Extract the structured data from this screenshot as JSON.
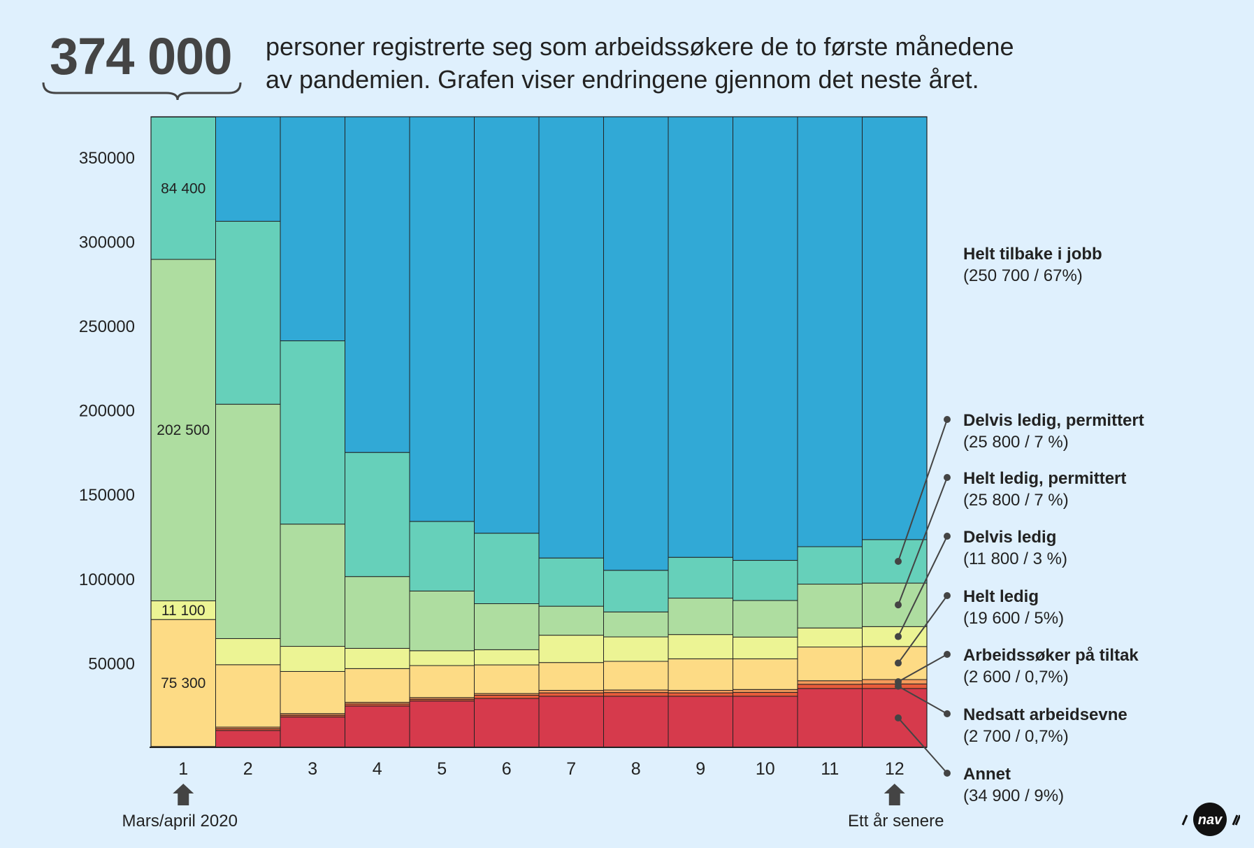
{
  "header": {
    "total": "374 000",
    "text_line1": "personer registrerte seg som arbeidssøkere de to første månedene",
    "text_line2": "av pandemien. Grafen viser endringene gjennom det neste året."
  },
  "chart_data": {
    "type": "bar",
    "stacked": true,
    "categories": [
      "1",
      "2",
      "3",
      "4",
      "5",
      "6",
      "7",
      "8",
      "9",
      "10",
      "11",
      "12"
    ],
    "y_ticks": [
      50000,
      100000,
      150000,
      200000,
      250000,
      300000,
      350000
    ],
    "ylim": [
      0,
      374000
    ],
    "series": [
      {
        "name": "Annet",
        "color": "#d63a4c",
        "values": [
          0,
          10000,
          18000,
          24500,
          27500,
          29000,
          30300,
          30300,
          30300,
          30300,
          34900,
          34900
        ]
      },
      {
        "name": "Nedsatt arbeidsevne",
        "color": "#e85b3a",
        "values": [
          0,
          1000,
          1000,
          1200,
          1000,
          1900,
          2000,
          2200,
          2000,
          2300,
          2500,
          2700
        ]
      },
      {
        "name": "Arbeidssøker på tiltak",
        "color": "#f59a5a",
        "values": [
          500,
          1000,
          1000,
          1000,
          1000,
          1000,
          1500,
          1500,
          1500,
          1700,
          2100,
          2600
        ]
      },
      {
        "name": "Helt ledig",
        "color": "#fddb85",
        "values": [
          75300,
          37000,
          25000,
          20000,
          19000,
          17000,
          16500,
          17000,
          18700,
          18200,
          20000,
          19600
        ]
      },
      {
        "name": "Delvis ledig",
        "color": "#ecf494",
        "values": [
          11100,
          15500,
          14900,
          12000,
          8800,
          9000,
          16200,
          14500,
          14400,
          12900,
          11300,
          11800
        ]
      },
      {
        "name": "Helt ledig, permittert",
        "color": "#aedda0",
        "values": [
          202500,
          139000,
          72500,
          42600,
          35400,
          27300,
          17200,
          14800,
          21600,
          21700,
          26000,
          25800
        ]
      },
      {
        "name": "Delvis ledig, permittert",
        "color": "#66d0ba",
        "values": [
          84400,
          108500,
          108700,
          73600,
          41300,
          41800,
          28600,
          24700,
          24200,
          23800,
          22200,
          25800
        ]
      },
      {
        "name": "Helt tilbake i jobb",
        "color": "#31a9d6",
        "values": [
          200,
          62000,
          132900,
          199100,
          240000,
          247000,
          261700,
          269000,
          261300,
          263100,
          255000,
          250700
        ]
      }
    ],
    "data_labels": [
      {
        "series": "Delvis ledig, permittert",
        "category": "1",
        "text": "84 400"
      },
      {
        "series": "Helt ledig, permittert",
        "category": "1",
        "text": "202 500"
      },
      {
        "series": "Delvis ledig",
        "category": "1",
        "text": "11 100"
      },
      {
        "series": "Helt ledig",
        "category": "1",
        "text": "75 300"
      }
    ],
    "legend": [
      {
        "name": "Helt tilbake i jobb",
        "detail": "(250 700 / 67%)",
        "pointer": false
      },
      {
        "name": "Delvis ledig, permittert",
        "detail": "(25 800 / 7 %)",
        "pointer": true
      },
      {
        "name": "Helt ledig, permittert",
        "detail": "(25 800 / 7 %)",
        "pointer": true
      },
      {
        "name": "Delvis ledig",
        "detail": "(11 800 / 3 %)",
        "pointer": true
      },
      {
        "name": "Helt ledig",
        "detail": "(19 600 / 5%)",
        "pointer": true
      },
      {
        "name": "Arbeidssøker på tiltak",
        "detail": "(2 600 / 0,7%)",
        "pointer": true
      },
      {
        "name": "Nedsatt arbeidsevne",
        "detail": "(2 700 / 0,7%)",
        "pointer": true
      },
      {
        "name": "Annet",
        "detail": "(34 900 / 9%)",
        "pointer": true
      }
    ],
    "start_label": "Mars/april 2020",
    "end_label": "Ett år senere"
  },
  "logo_text": "nav"
}
